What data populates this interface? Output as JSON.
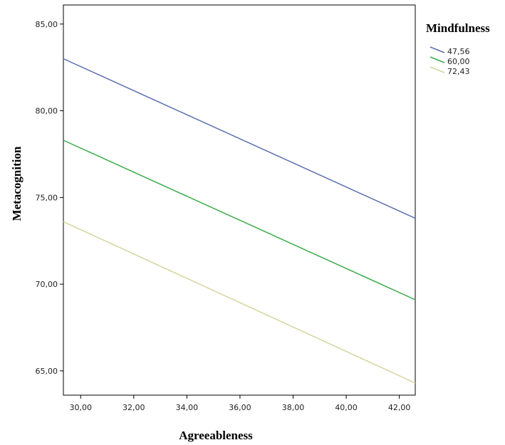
{
  "chart_data": {
    "type": "line",
    "xlabel": "Agreeableness",
    "ylabel": "Metacognition",
    "xlim": [
      29.35,
      42.6
    ],
    "ylim": [
      63.6,
      86.1
    ],
    "x_ticks": [
      "30,00",
      "32,00",
      "34,00",
      "36,00",
      "38,00",
      "40,00",
      "42,00"
    ],
    "x_tick_values": [
      30,
      32,
      34,
      36,
      38,
      40,
      42
    ],
    "y_ticks": [
      "65,00",
      "70,00",
      "75,00",
      "80,00",
      "85,00"
    ],
    "y_tick_values": [
      65,
      70,
      75,
      80,
      85
    ],
    "grid": false,
    "legend": {
      "title": "Mindfulness",
      "placement": "right"
    },
    "series": [
      {
        "name": "47,56",
        "color": "#5a6fb0",
        "x": [
          29.35,
          42.6
        ],
        "y": [
          83.0,
          73.8
        ]
      },
      {
        "name": "60,00",
        "color": "#3aaa4a",
        "x": [
          29.35,
          42.6
        ],
        "y": [
          78.3,
          69.1
        ]
      },
      {
        "name": "72,43",
        "color": "#d6d49e",
        "x": [
          29.35,
          42.6
        ],
        "y": [
          73.6,
          64.3
        ]
      }
    ]
  }
}
